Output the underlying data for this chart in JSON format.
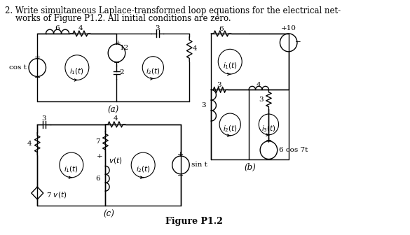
{
  "title_line1": "2. Write simultaneous Laplace-transformed loop equations for the electrical net-",
  "title_line2": "    works of Figure P1.2. All initial conditions are zero.",
  "fig_label": "Figure P1.2",
  "background": "#ffffff"
}
